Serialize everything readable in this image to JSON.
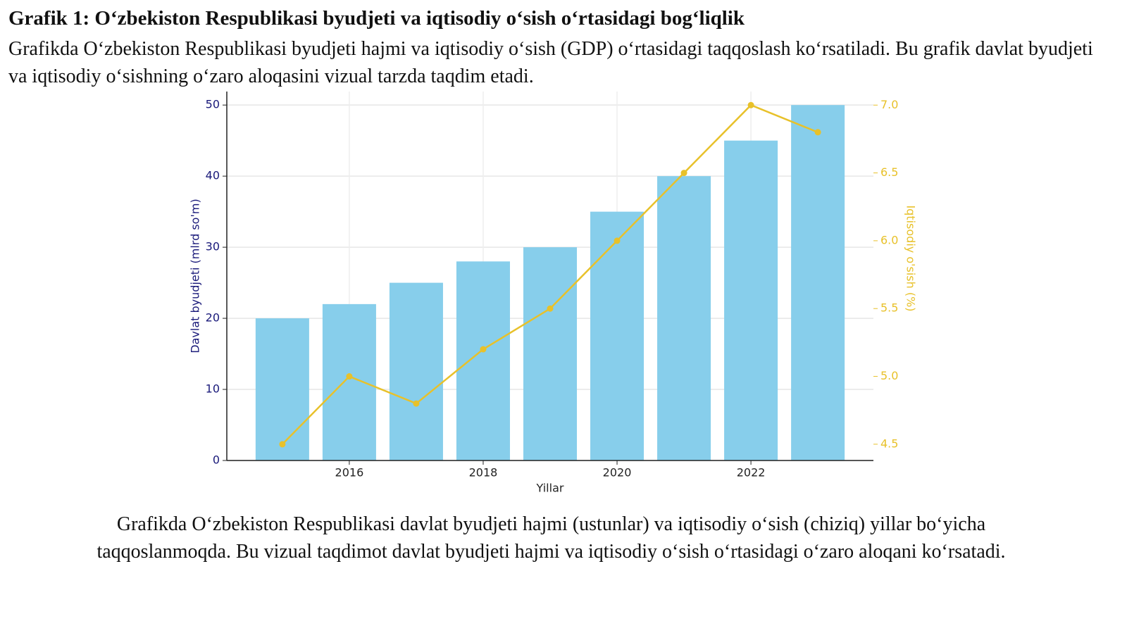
{
  "header": {
    "title": "Grafik 1: O‘zbekiston Respublikasi byudjeti va iqtisodiy o‘sish o‘rtasidagi bog‘liqlik",
    "text": "Grafikda O‘zbekiston Respublikasi byudjeti hajmi va iqtisodiy o‘sish (GDP) o‘rtasidagi taqqoslash ko‘rsatiladi. Bu grafik davlat byudjeti va iqtisodiy o‘sishning o‘zaro aloqasini vizual tarzda taqdim etadi."
  },
  "chart_data": {
    "type": "bar-line",
    "x": [
      2015,
      2016,
      2017,
      2018,
      2019,
      2020,
      2021,
      2022,
      2023
    ],
    "xlabel": "Yillar",
    "ylabel": "Davlat byudjeti (mlrd so'm)",
    "y2label": "Iqtisodiy o'sish (%)",
    "xlim": [
      2014.17,
      2023.83
    ],
    "xticks": [
      2016,
      2018,
      2020,
      2022
    ],
    "ylim": [
      0,
      51.9
    ],
    "yticks": [
      0,
      10,
      20,
      30,
      40,
      50
    ],
    "y2lim": [
      4.38,
      7.1
    ],
    "y2ticks": [
      {
        "value": 4.5,
        "label": "4.5"
      },
      {
        "value": 5.0,
        "label": "5.0"
      },
      5.5,
      {
        "value": 6.0,
        "label": "6.0"
      },
      6.5,
      {
        "value": 7.0,
        "label": "7.0"
      }
    ],
    "grid": true,
    "series": [
      {
        "name": "Davlat byudjeti",
        "color": "#87ceeb",
        "values": [
          20,
          22,
          25,
          28,
          30,
          35,
          40,
          45,
          50
        ]
      },
      {
        "name": "Iqtisodiy o'sish",
        "color": "#e8c12a",
        "axis": "y2",
        "values": [
          4.5,
          5.0,
          4.8,
          5.2,
          5.5,
          6.0,
          6.5,
          7.0,
          6.8
        ]
      }
    ]
  },
  "caption": "Grafikda O‘zbekiston Respublikasi davlat byudjeti hajmi (ustunlar) va iqtisodiy o‘sish (chiziq) yillar bo‘yicha taqqoslanmoqda. Bu vizual taqdimot davlat byudjeti hajmi va iqtisodiy o‘sish o‘rtasidagi o‘zaro aloqani ko‘rsatadi."
}
